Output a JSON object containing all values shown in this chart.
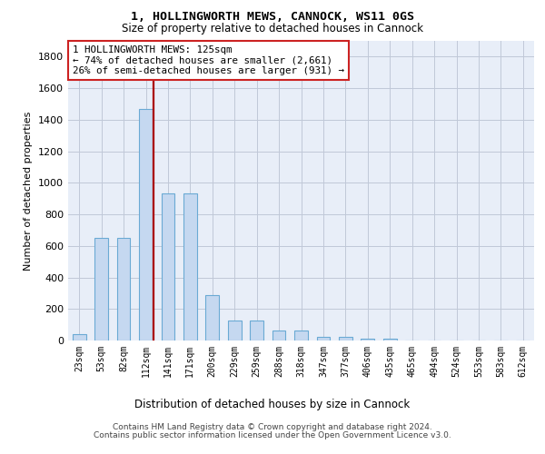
{
  "title1": "1, HOLLINGWORTH MEWS, CANNOCK, WS11 0GS",
  "title2": "Size of property relative to detached houses in Cannock",
  "xlabel": "Distribution of detached houses by size in Cannock",
  "ylabel": "Number of detached properties",
  "bar_labels": [
    "23sqm",
    "53sqm",
    "82sqm",
    "112sqm",
    "141sqm",
    "171sqm",
    "200sqm",
    "229sqm",
    "259sqm",
    "288sqm",
    "318sqm",
    "347sqm",
    "377sqm",
    "406sqm",
    "435sqm",
    "465sqm",
    "494sqm",
    "524sqm",
    "553sqm",
    "583sqm",
    "612sqm"
  ],
  "bar_values": [
    38,
    651,
    651,
    1468,
    935,
    935,
    290,
    128,
    128,
    62,
    62,
    25,
    25,
    10,
    10,
    0,
    0,
    0,
    0,
    0,
    0
  ],
  "bar_color": "#c5d8f0",
  "bar_edge_color": "#6aaad4",
  "vline_color": "#aa0000",
  "annotation_line1": "1 HOLLINGWORTH MEWS: 125sqm",
  "annotation_line2": "← 74% of detached houses are smaller (2,661)",
  "annotation_line3": "26% of semi-detached houses are larger (931) →",
  "annotation_box_edge": "#cc2222",
  "ylim_max": 1900,
  "yticks": [
    0,
    200,
    400,
    600,
    800,
    1000,
    1200,
    1400,
    1600,
    1800
  ],
  "footer1": "Contains HM Land Registry data © Crown copyright and database right 2024.",
  "footer2": "Contains public sector information licensed under the Open Government Licence v3.0.",
  "bg_color": "#e8eef8",
  "grid_color": "#c0c8d8"
}
